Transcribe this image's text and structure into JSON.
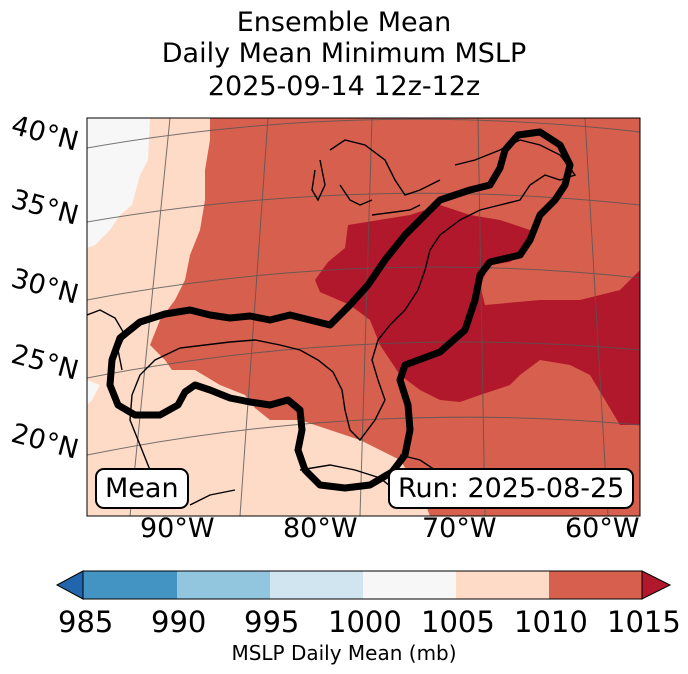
{
  "title_lines": [
    "Ensemble Mean",
    "Daily Mean Minimum MSLP",
    "2025-09-14 12z-12z"
  ],
  "lat_labels": [
    "40°N",
    "35°N",
    "30°N",
    "25°N",
    "20°N"
  ],
  "lon_labels": [
    "90°W",
    "80°W",
    "70°W",
    "60°W"
  ],
  "mean_box": "Mean",
  "run_box": "Run: 2025-08-25",
  "colorbar": {
    "ticks": [
      "985",
      "990",
      "995",
      "1000",
      "1005",
      "1010",
      "1015"
    ],
    "label": "MSLP Daily Mean (mb)",
    "colors": {
      "under": "#2166ac",
      "985-990": "#4393c3",
      "990-995": "#92c5de",
      "995-1000": "#d1e5f0",
      "1000-1005": "#f7f7f7",
      "1005-1010": "#fddbc7",
      "1010-1015": "#d6604d",
      "over": "#b2182b"
    }
  },
  "contour_color": "#000000"
}
